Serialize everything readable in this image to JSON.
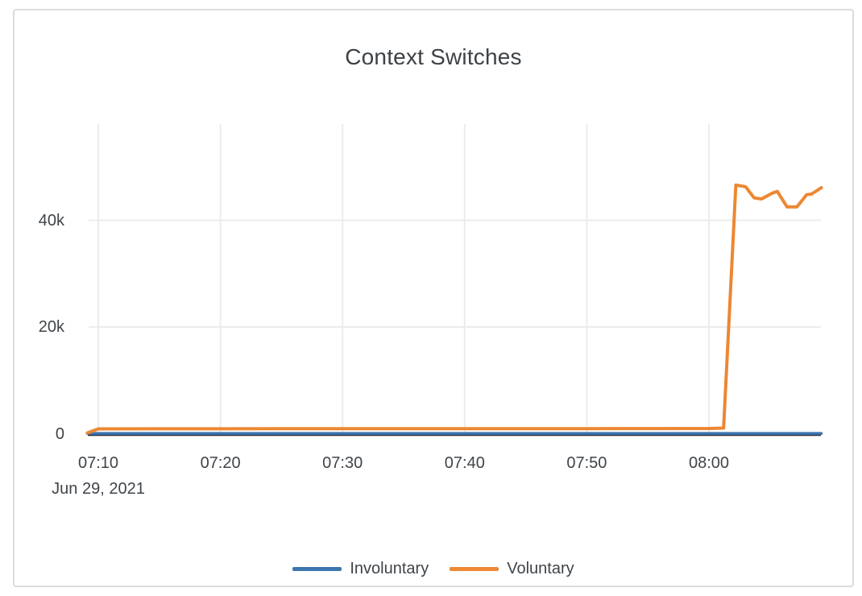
{
  "chart_data": {
    "type": "line",
    "title": "Context Switches",
    "x_axis": {
      "date_label": "Jun 29, 2021",
      "ticks": [
        {
          "label": "07:10",
          "minute": 10
        },
        {
          "label": "07:20",
          "minute": 20
        },
        {
          "label": "07:30",
          "minute": 30
        },
        {
          "label": "07:40",
          "minute": 40
        },
        {
          "label": "07:50",
          "minute": 50
        },
        {
          "label": "08:00",
          "minute": 60
        }
      ],
      "range_minutes": [
        9.1,
        69.2
      ]
    },
    "y_axis": {
      "ticks": [
        {
          "label": "0",
          "value": 0
        },
        {
          "label": "20k",
          "value": 20000
        },
        {
          "label": "40k",
          "value": 40000
        }
      ],
      "range": [
        0,
        58000
      ],
      "grid": true
    },
    "series": [
      {
        "name": "Involuntary",
        "color": "#3b76b0",
        "points": [
          [
            9.1,
            60
          ],
          [
            20,
            60
          ],
          [
            30,
            60
          ],
          [
            40,
            60
          ],
          [
            50,
            60
          ],
          [
            60,
            60
          ],
          [
            69.2,
            60
          ]
        ]
      },
      {
        "name": "Voluntary",
        "color": "#ed8733",
        "points": [
          [
            9.1,
            150
          ],
          [
            10,
            900
          ],
          [
            15,
            920
          ],
          [
            20,
            920
          ],
          [
            25,
            930
          ],
          [
            30,
            930
          ],
          [
            35,
            940
          ],
          [
            40,
            940
          ],
          [
            45,
            950
          ],
          [
            50,
            950
          ],
          [
            55,
            960
          ],
          [
            60,
            980
          ],
          [
            61.2,
            1050
          ],
          [
            62.2,
            46600
          ],
          [
            63.0,
            46300
          ],
          [
            63.7,
            44200
          ],
          [
            64.3,
            44000
          ],
          [
            65.2,
            45100
          ],
          [
            65.6,
            45400
          ],
          [
            66.4,
            42500
          ],
          [
            67.2,
            42500
          ],
          [
            68.0,
            44800
          ],
          [
            68.4,
            44900
          ],
          [
            69.2,
            46100
          ]
        ]
      }
    ],
    "legend": {
      "position": "bottom"
    }
  },
  "colors": {
    "grid": "#ececec",
    "axis_line": "#2b2f33",
    "text": "#3f4449",
    "card_border": "#dcdcdc",
    "background": "#ffffff",
    "involuntary": "#3b76b0",
    "voluntary": "#ed8733"
  }
}
